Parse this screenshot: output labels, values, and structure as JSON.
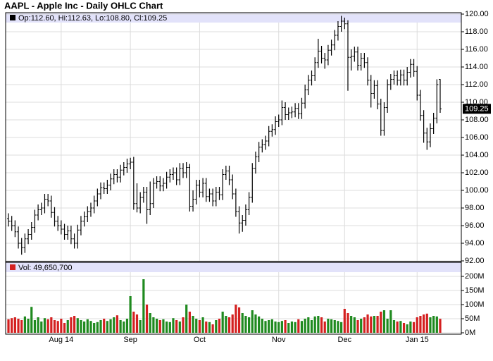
{
  "chart_data": {
    "type": "ohlc",
    "title": "AAPL - Apple Inc - Daily OHLC Chart",
    "price_legend": "Op:112.60, Hi:112.63, Lo:108.80, Cl:109.25",
    "volume_legend": "Vol: 49,650,700",
    "bar_color": "#000000",
    "up_color": "#1f8a1f",
    "down_color": "#d42020",
    "band_color": "#e2e2fa",
    "grid": true,
    "categories": [
      null,
      null,
      null,
      null,
      null,
      null,
      null,
      null,
      null,
      null,
      null,
      null,
      null,
      null,
      null,
      null,
      "Aug 14",
      null,
      null,
      null,
      null,
      null,
      null,
      null,
      null,
      null,
      null,
      null,
      null,
      null,
      null,
      null,
      null,
      null,
      null,
      null,
      null,
      "Sep",
      null,
      null,
      null,
      null,
      null,
      null,
      null,
      null,
      null,
      null,
      null,
      null,
      null,
      null,
      null,
      null,
      null,
      null,
      null,
      null,
      "Oct",
      null,
      null,
      null,
      null,
      null,
      null,
      null,
      null,
      null,
      null,
      null,
      null,
      null,
      null,
      null,
      null,
      null,
      null,
      null,
      null,
      null,
      null,
      null,
      "Nov",
      null,
      null,
      null,
      null,
      null,
      null,
      null,
      null,
      null,
      null,
      null,
      null,
      null,
      null,
      null,
      null,
      null,
      null,
      null,
      "Dec",
      null,
      null,
      null,
      null,
      null,
      null,
      null,
      null,
      null,
      null,
      null,
      null,
      null,
      null,
      null,
      null,
      null,
      null,
      null,
      null,
      null,
      "Jan 15",
      null,
      null,
      null,
      null,
      null,
      null,
      null
    ],
    "open": [
      96.8,
      96.5,
      96.0,
      95.3,
      94.0,
      93.5,
      94.5,
      95.0,
      95.8,
      97.2,
      97.8,
      98.0,
      99.0,
      98.8,
      97.5,
      96.5,
      96.0,
      95.6,
      95.0,
      95.4,
      94.5,
      94.0,
      95.5,
      96.5,
      97.0,
      97.6,
      98.0,
      98.8,
      99.6,
      100.3,
      100.2,
      100.6,
      101.3,
      101.8,
      101.5,
      102.3,
      102.6,
      103.0,
      103.2,
      98.5,
      98.0,
      99.2,
      99.8,
      97.8,
      98.5,
      100.8,
      101.0,
      100.5,
      100.8,
      101.5,
      101.8,
      102.0,
      101.2,
      102.5,
      102.0,
      102.6,
      98.2,
      99.0,
      100.6,
      99.8,
      100.8,
      99.3,
      99.6,
      98.8,
      99.8,
      99.5,
      101.8,
      102.2,
      101.2,
      99.6,
      97.6,
      96.3,
      96.6,
      97.8,
      99.2,
      102.5,
      103.8,
      104.9,
      105.2,
      105.6,
      106.7,
      106.9,
      107.8,
      108.0,
      109.4,
      108.6,
      108.8,
      108.9,
      109.3,
      108.7,
      109.9,
      111.4,
      112.5,
      113.0,
      114.5,
      115.8,
      115.0,
      114.8,
      115.9,
      116.5,
      117.6,
      118.6,
      119.2,
      118.9,
      115.1,
      115.2,
      115.7,
      114.2,
      115.0,
      114.5,
      112.5,
      111.0,
      111.9,
      109.8,
      106.8,
      109.4,
      112.0,
      112.6,
      113.0,
      112.5,
      113.1,
      112.5,
      113.4,
      114.3,
      113.5,
      110.8,
      108.5,
      106.5,
      105.5,
      107.0,
      108.2,
      112.6
    ],
    "high": [
      97.4,
      97.1,
      96.6,
      95.9,
      94.6,
      95.1,
      95.6,
      96.4,
      97.8,
      98.4,
      98.6,
      99.6,
      99.6,
      99.4,
      98.1,
      97.1,
      96.6,
      96.2,
      96.0,
      96.0,
      95.1,
      96.1,
      97.1,
      97.6,
      98.2,
      98.6,
      99.4,
      100.2,
      100.9,
      100.9,
      101.2,
      101.9,
      102.4,
      102.4,
      102.9,
      103.2,
      103.6,
      103.7,
      103.8,
      100.8,
      99.8,
      100.4,
      100.4,
      101.0,
      101.4,
      101.6,
      101.6,
      101.4,
      102.1,
      102.4,
      102.6,
      102.6,
      103.1,
      103.1,
      103.2,
      103.0,
      100.0,
      101.2,
      101.2,
      101.4,
      101.4,
      100.2,
      100.2,
      100.4,
      100.4,
      102.4,
      102.8,
      102.8,
      101.8,
      100.2,
      98.2,
      97.2,
      98.4,
      99.8,
      103.1,
      104.4,
      105.5,
      105.8,
      106.2,
      107.3,
      107.5,
      108.4,
      108.6,
      110.2,
      110.0,
      109.4,
      109.5,
      109.9,
      109.9,
      110.5,
      112.0,
      113.1,
      113.6,
      115.1,
      117.2,
      116.4,
      115.6,
      116.5,
      117.1,
      118.2,
      119.2,
      119.8,
      119.6,
      119.3,
      116.0,
      116.3,
      116.3,
      115.6,
      115.6,
      115.1,
      113.1,
      112.5,
      112.5,
      110.4,
      110.0,
      112.6,
      113.2,
      113.6,
      113.6,
      113.7,
      113.7,
      114.0,
      114.9,
      114.9,
      114.1,
      111.4,
      109.1,
      107.1,
      107.6,
      108.8,
      112.6,
      112.63
    ],
    "low": [
      95.9,
      95.4,
      94.7,
      93.4,
      92.7,
      92.9,
      93.9,
      94.4,
      95.2,
      96.6,
      97.2,
      97.4,
      98.2,
      96.9,
      95.9,
      95.4,
      95.0,
      94.4,
      94.4,
      93.9,
      93.4,
      93.4,
      94.9,
      95.9,
      96.4,
      97.0,
      97.4,
      98.2,
      99.0,
      99.6,
      99.6,
      100.0,
      100.7,
      100.9,
      100.9,
      101.7,
      102.0,
      102.4,
      97.8,
      97.5,
      97.4,
      98.6,
      96.2,
      97.2,
      98.0,
      100.2,
      99.9,
      99.9,
      100.2,
      100.9,
      101.2,
      100.6,
      100.6,
      101.4,
      101.4,
      97.6,
      97.6,
      98.4,
      99.2,
      99.2,
      98.7,
      98.7,
      98.2,
      98.2,
      98.9,
      98.9,
      101.2,
      100.6,
      99.0,
      97.0,
      95.1,
      95.3,
      96.0,
      97.2,
      98.6,
      101.9,
      103.2,
      104.3,
      104.6,
      105.0,
      106.1,
      106.3,
      107.2,
      107.4,
      108.0,
      108.0,
      108.2,
      108.3,
      108.1,
      108.1,
      109.3,
      110.8,
      111.9,
      112.4,
      113.9,
      114.4,
      113.8,
      114.2,
      115.3,
      115.9,
      117.0,
      118.0,
      118.3,
      111.3,
      113.6,
      114.6,
      113.6,
      113.6,
      113.9,
      111.9,
      109.4,
      110.4,
      109.2,
      106.2,
      106.2,
      108.8,
      111.4,
      112.0,
      111.9,
      111.9,
      111.9,
      111.9,
      112.8,
      112.9,
      110.2,
      107.9,
      105.4,
      104.6,
      104.9,
      106.4,
      107.6,
      108.8
    ],
    "close": [
      96.5,
      96.0,
      95.3,
      94.0,
      93.5,
      94.5,
      95.0,
      95.8,
      97.2,
      97.8,
      98.0,
      99.0,
      98.8,
      97.5,
      96.5,
      96.0,
      95.6,
      95.0,
      95.4,
      94.5,
      94.0,
      95.5,
      96.5,
      97.0,
      97.6,
      98.0,
      98.8,
      99.6,
      100.3,
      100.2,
      100.6,
      101.3,
      101.8,
      101.5,
      102.3,
      102.6,
      103.0,
      103.2,
      98.5,
      98.0,
      99.2,
      99.8,
      97.8,
      98.5,
      100.8,
      101.0,
      100.5,
      100.8,
      101.5,
      101.8,
      102.0,
      101.2,
      102.5,
      102.0,
      102.6,
      98.2,
      99.0,
      100.6,
      99.8,
      100.8,
      99.3,
      99.6,
      98.8,
      99.8,
      99.5,
      101.8,
      102.2,
      101.2,
      99.6,
      97.6,
      96.3,
      96.6,
      97.8,
      99.2,
      102.5,
      103.8,
      104.9,
      105.2,
      105.6,
      106.7,
      106.9,
      107.8,
      108.0,
      109.4,
      108.6,
      108.8,
      108.9,
      109.3,
      108.7,
      109.9,
      111.4,
      112.5,
      113.0,
      114.5,
      115.8,
      115.0,
      114.8,
      115.9,
      116.5,
      117.6,
      118.6,
      119.2,
      118.9,
      115.1,
      115.2,
      115.7,
      114.2,
      115.0,
      114.5,
      112.5,
      111.0,
      111.9,
      109.8,
      106.8,
      109.4,
      112.0,
      112.6,
      113.0,
      112.5,
      113.1,
      112.5,
      113.4,
      114.3,
      113.5,
      110.8,
      108.5,
      106.5,
      105.5,
      107.0,
      108.2,
      112.0,
      109.25
    ],
    "volume": [
      48,
      52,
      55,
      50,
      45,
      58,
      50,
      92,
      45,
      55,
      40,
      52,
      48,
      55,
      45,
      42,
      50,
      35,
      45,
      55,
      60,
      52,
      45,
      40,
      48,
      42,
      35,
      38,
      45,
      50,
      42,
      48,
      55,
      62,
      45,
      40,
      50,
      130,
      75,
      65,
      45,
      190,
      100,
      70,
      55,
      50,
      45,
      48,
      40,
      38,
      52,
      45,
      40,
      55,
      100,
      75,
      60,
      50,
      45,
      55,
      40,
      38,
      30,
      45,
      50,
      75,
      60,
      55,
      65,
      100,
      90,
      70,
      60,
      55,
      80,
      65,
      58,
      50,
      42,
      45,
      48,
      40,
      38,
      42,
      45,
      35,
      40,
      38,
      48,
      42,
      50,
      55,
      45,
      58,
      60,
      55,
      40,
      50,
      48,
      45,
      42,
      38,
      85,
      70,
      60,
      55,
      45,
      50,
      55,
      65,
      58,
      60,
      60,
      75,
      80,
      50,
      80,
      45,
      40,
      42,
      35,
      30,
      40,
      38,
      55,
      60,
      65,
      68,
      55,
      60,
      58,
      49.65
    ],
    "ylim": [
      92,
      120
    ],
    "yticks": [
      {
        "value": 92,
        "label": "92.00"
      },
      {
        "value": 94,
        "label": "94.00"
      },
      {
        "value": 96,
        "label": "96.00"
      },
      {
        "value": 98,
        "label": "98.00"
      },
      {
        "value": 100,
        "label": "100.00"
      },
      {
        "value": 102,
        "label": "102.00"
      },
      {
        "value": 104,
        "label": "104.00"
      },
      {
        "value": 106,
        "label": "106.00"
      },
      {
        "value": 108,
        "label": "108.00"
      },
      {
        "value": 110,
        "label": "110.00"
      },
      {
        "value": 112,
        "label": "112.00"
      },
      {
        "value": 114,
        "label": "114.00"
      },
      {
        "value": 116,
        "label": "116.00"
      },
      {
        "value": 118,
        "label": "118.00"
      },
      {
        "value": 120,
        "label": "120.00"
      }
    ],
    "y2lim": [
      0,
      200
    ],
    "y2ticks": [
      {
        "value": 0,
        "label": "0M"
      },
      {
        "value": 50,
        "label": "50M"
      },
      {
        "value": 100,
        "label": "100M"
      },
      {
        "value": 150,
        "label": "150M"
      },
      {
        "value": 200,
        "label": "200M"
      }
    ]
  }
}
